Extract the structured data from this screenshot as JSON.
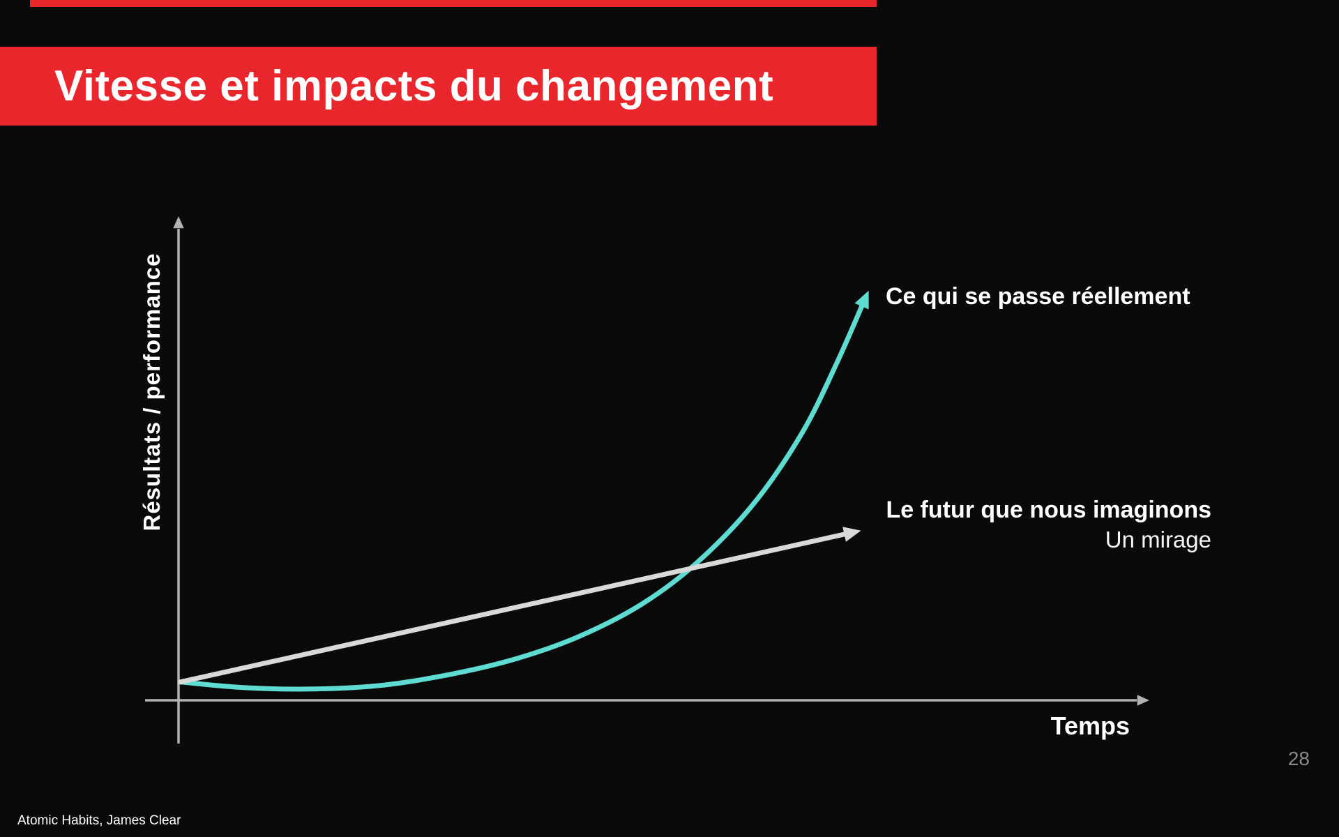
{
  "slide": {
    "title": "Vitesse et impacts du changement",
    "page_number": "28",
    "attribution": "Atomic Habits, James Clear"
  },
  "colors": {
    "background": "#0a0a0a",
    "banner_red": "#e8262b",
    "title_text": "#ffffff",
    "axis": "#b3b3b3",
    "teal": "#5fdcd2",
    "gray_line": "#d9d9d9",
    "page_number": "#8a8a8a"
  },
  "chart_data": {
    "type": "line",
    "title": "Vitesse et impacts du changement",
    "x_axis_label": "Temps",
    "y_axis_label": "Résultats / performance",
    "grid": false,
    "axes": "conceptual, no tick labels, arrowheads on both axes",
    "legend_position": "inline annotations at line ends",
    "series": [
      {
        "name": "Ce qui se passe réellement",
        "annotation": "Ce qui se passe réellement",
        "color": "#5fdcd2",
        "shape": "exponential",
        "points_xy_fraction": [
          [
            0.002,
            0.042
          ],
          [
            0.076,
            0.029
          ],
          [
            0.157,
            0.026
          ],
          [
            0.237,
            0.035
          ],
          [
            0.317,
            0.061
          ],
          [
            0.39,
            0.096
          ],
          [
            0.462,
            0.147
          ],
          [
            0.534,
            0.221
          ],
          [
            0.598,
            0.317
          ],
          [
            0.663,
            0.452
          ],
          [
            0.719,
            0.615
          ],
          [
            0.759,
            0.776
          ],
          [
            0.789,
            0.912
          ]
        ]
      },
      {
        "name": "Le futur que nous imaginons",
        "annotation": "Le futur que nous imaginons",
        "annotation_sub": "Un mirage",
        "color": "#d9d9d9",
        "shape": "linear",
        "points_xy_fraction": [
          [
            0.002,
            0.042
          ],
          [
            0.771,
            0.383
          ]
        ]
      }
    ]
  }
}
